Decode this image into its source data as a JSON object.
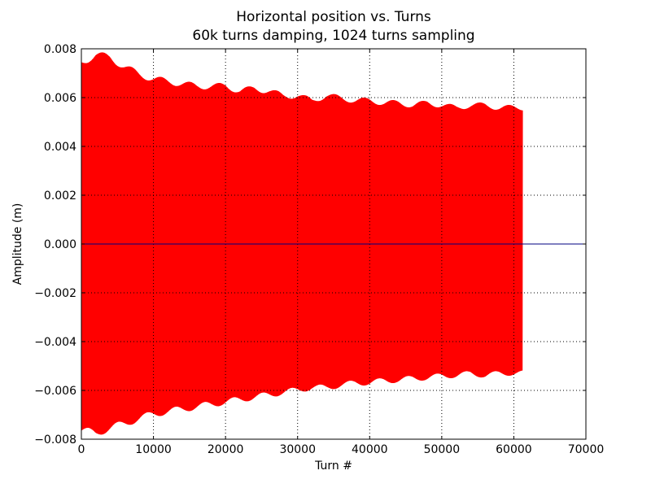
{
  "chart_data": {
    "type": "line",
    "title": "Horizontal position vs. Turns",
    "subtitle": "60k turns damping, 1024 turns sampling",
    "xlabel": "Turn #",
    "ylabel": "Amplitude (m)",
    "xlim": [
      0,
      70000
    ],
    "ylim": [
      -0.008,
      0.008
    ],
    "xticks": [
      0,
      10000,
      20000,
      30000,
      40000,
      50000,
      60000,
      70000
    ],
    "xtick_labels": [
      "0",
      "10000",
      "20000",
      "30000",
      "40000",
      "50000",
      "60000",
      "70000"
    ],
    "yticks": [
      -0.008,
      -0.006,
      -0.004,
      -0.002,
      0.0,
      0.002,
      0.004,
      0.006,
      0.008
    ],
    "ytick_labels": [
      "−0.008",
      "−0.006",
      "−0.004",
      "−0.002",
      "0.000",
      "0.002",
      "0.004",
      "0.006",
      "0.008"
    ],
    "grid": true,
    "grid_style": "dotted",
    "colors": {
      "signal": "#ff0000",
      "baseline": "#000080",
      "axes": "#000000"
    },
    "series": [
      {
        "color": "#ff0000",
        "turn_range": [
          0,
          61200
        ],
        "envelope": {
          "x": [
            0,
            2000,
            4000,
            6000,
            8000,
            10000,
            12000,
            14000,
            16000,
            18000,
            20000,
            22000,
            24000,
            26000,
            28000,
            30000,
            32000,
            34000,
            36000,
            38000,
            40000,
            42000,
            44000,
            46000,
            48000,
            50000,
            52000,
            54000,
            56000,
            58000,
            60000,
            61200
          ],
          "upper": [
            0.0076,
            0.0079,
            0.0078,
            0.0074,
            0.0071,
            0.0069,
            0.0068,
            0.0067,
            0.0066,
            0.0066,
            0.0066,
            0.0064,
            0.0065,
            0.0064,
            0.0062,
            0.0062,
            0.006,
            0.0062,
            0.0061,
            0.006,
            0.006,
            0.0059,
            0.0059,
            0.0058,
            0.0059,
            0.0058,
            0.0057,
            0.0058,
            0.0058,
            0.0057,
            0.0057,
            0.0057
          ],
          "lower": [
            -0.0078,
            -0.0079,
            -0.0077,
            -0.0075,
            -0.0073,
            -0.0071,
            -0.007,
            -0.0069,
            -0.0068,
            -0.0067,
            -0.0066,
            -0.0065,
            -0.0064,
            -0.0063,
            -0.0062,
            -0.0061,
            -0.006,
            -0.006,
            -0.0059,
            -0.0058,
            -0.0058,
            -0.0057,
            -0.0057,
            -0.0056,
            -0.0056,
            -0.0055,
            -0.0055,
            -0.0054,
            -0.0055,
            -0.0054,
            -0.0054,
            -0.0054
          ]
        }
      },
      {
        "color": "#000080",
        "x": [
          0,
          70000
        ],
        "y": [
          0.0,
          0.0
        ]
      }
    ]
  }
}
